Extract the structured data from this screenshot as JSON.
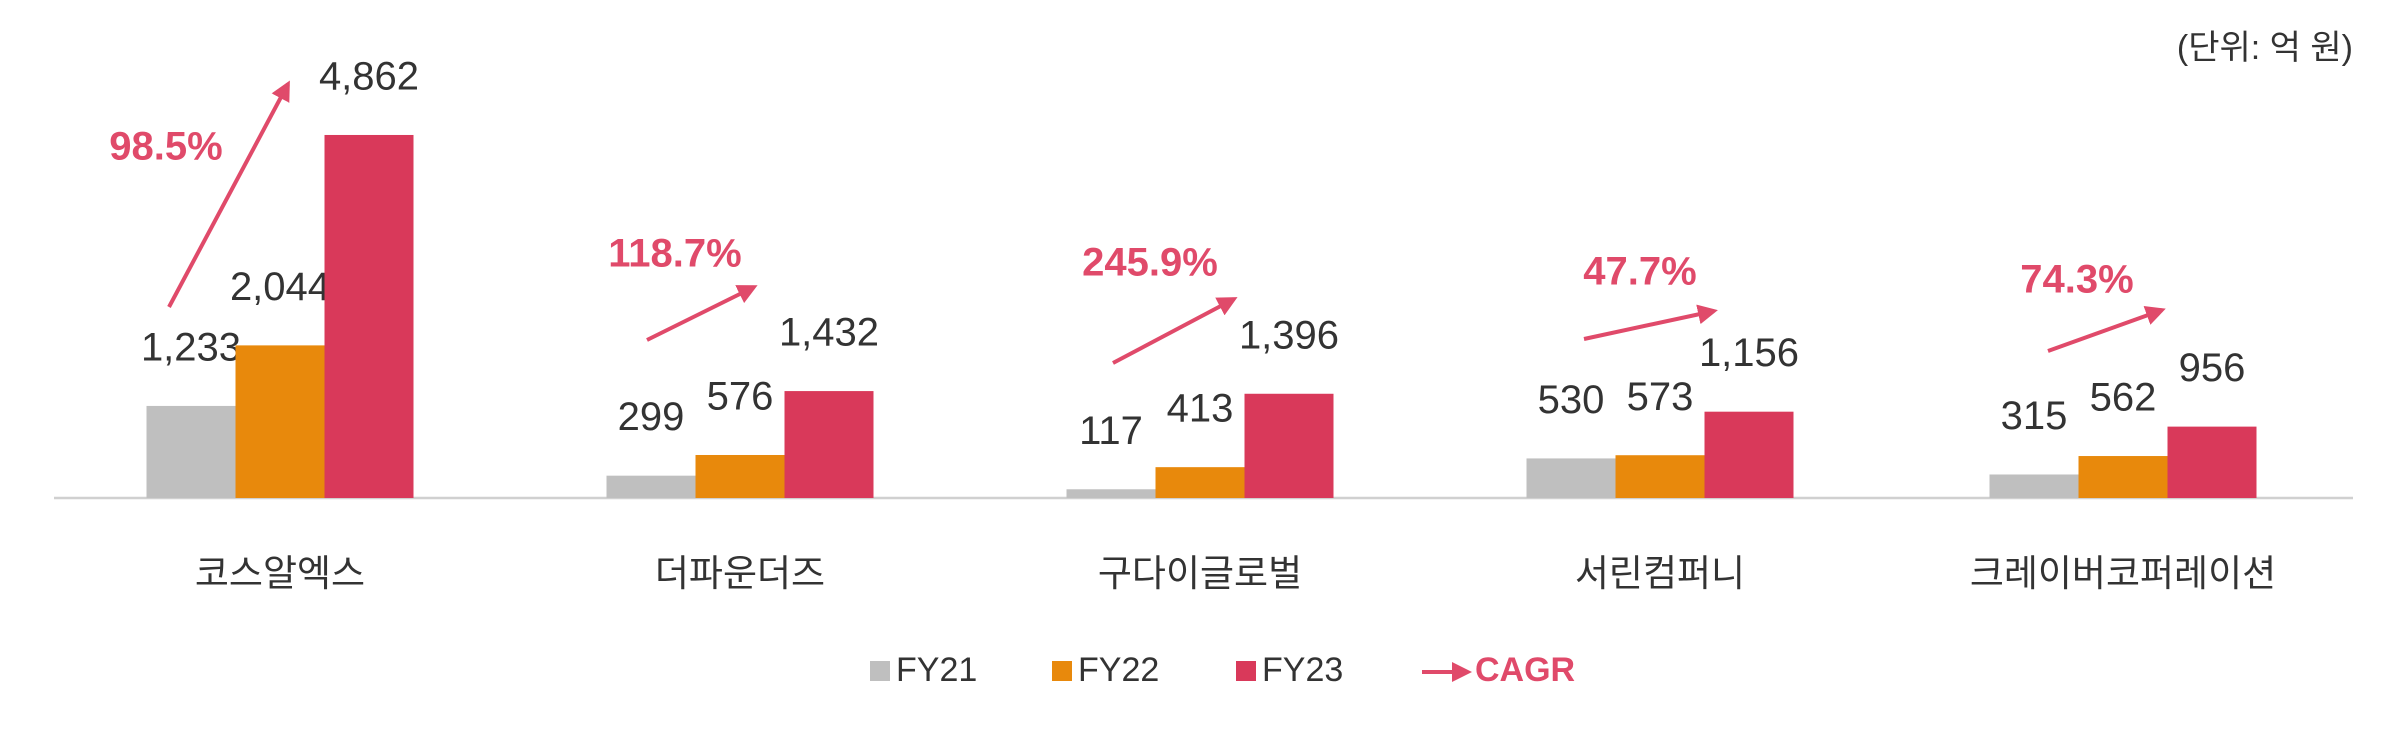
{
  "chart_data": {
    "type": "bar",
    "unit_note": "(단위: 억 원)",
    "categories": [
      "코스알엑스",
      "더파운더즈",
      "구다이글로벌",
      "서린컴퍼니",
      "크레이버코퍼레이션"
    ],
    "series": [
      {
        "name": "FY21",
        "color": "#bfbfbf",
        "values": [
          1233,
          299,
          117,
          530,
          315
        ],
        "value_labels": [
          "1,233",
          "299",
          "117",
          "530",
          "315"
        ]
      },
      {
        "name": "FY22",
        "color": "#e8890c",
        "values": [
          2044,
          576,
          413,
          573,
          562
        ],
        "value_labels": [
          "2,044",
          "576",
          "413",
          "573",
          "562"
        ]
      },
      {
        "name": "FY23",
        "color": "#d9395a",
        "values": [
          4862,
          1432,
          1396,
          1156,
          956
        ],
        "value_labels": [
          "4,862",
          "1,432",
          "1,396",
          "1,156",
          "956"
        ]
      }
    ],
    "cagr": {
      "name": "CAGR",
      "color": "#e04a6a",
      "values": [
        98.5,
        118.7,
        245.9,
        47.7,
        74.3
      ],
      "value_labels": [
        "98.5%",
        "118.7%",
        "245.9%",
        "47.7%",
        "74.3%"
      ]
    },
    "ylim": [
      0,
      6000
    ]
  }
}
